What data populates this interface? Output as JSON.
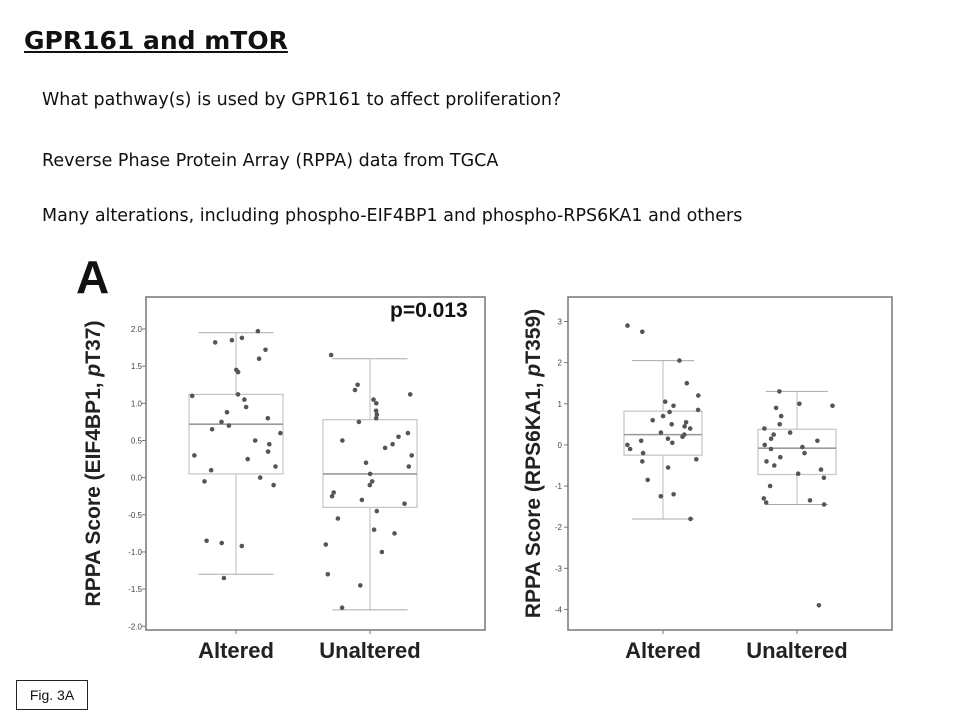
{
  "slide": {
    "title": "GPR161 and mTOR",
    "bullets": [
      "What pathway(s) is used by GPR161 to affect proliferation?",
      "Reverse Phase Protein Array (RPPA) data from TGCA",
      "Many alterations, including phospho-EIF4BP1 and phospho-RPS6KA1 and others"
    ],
    "panel_letter": "A",
    "figure_label": "Fig. 3A"
  },
  "chart_data": [
    {
      "type": "scatter",
      "subtype": "box-and-strip",
      "title": "",
      "annotation": "p=0.013",
      "ylabel_prefix": "RPPA Score (EIF4BP1, ",
      "ylabel_italic": "p",
      "ylabel_suffix": "T37)",
      "categories": [
        "Altered",
        "Unaltered"
      ],
      "ylim": [
        -2.05,
        2.35
      ],
      "yticks": [
        "2.0",
        "1.5",
        "1.0",
        "0.5",
        "0.0",
        "-0.5",
        "-1.0",
        "-1.5",
        "-2.0"
      ],
      "ytick_values": [
        2.0,
        1.5,
        1.0,
        0.5,
        0.0,
        -0.5,
        -1.0,
        -1.5,
        -2.0
      ],
      "grid": false,
      "boxes": [
        {
          "category": "Altered",
          "whisker_low": -1.3,
          "q1": 0.05,
          "median": 0.72,
          "q3": 1.12,
          "whisker_high": 1.95
        },
        {
          "category": "Unaltered",
          "whisker_low": -1.78,
          "q1": -0.4,
          "median": 0.05,
          "q3": 0.78,
          "whisker_high": 1.6
        }
      ],
      "points": [
        {
          "category": "Altered",
          "y": [
            1.97,
            1.88,
            1.85,
            1.82,
            1.72,
            1.6,
            1.45,
            1.42,
            1.12,
            1.1,
            1.05,
            0.95,
            0.88,
            0.8,
            0.75,
            0.7,
            0.65,
            0.6,
            0.5,
            0.45,
            0.35,
            0.3,
            0.25,
            0.15,
            0.1,
            0.0,
            -0.05,
            -0.1,
            -0.85,
            -0.88,
            -0.92,
            -1.35
          ]
        },
        {
          "category": "Unaltered",
          "y": [
            1.65,
            1.25,
            1.18,
            1.12,
            1.05,
            1.0,
            0.9,
            0.85,
            0.8,
            0.75,
            0.6,
            0.55,
            0.5,
            0.45,
            0.4,
            0.3,
            0.2,
            0.15,
            0.05,
            -0.05,
            -0.1,
            -0.2,
            -0.25,
            -0.3,
            -0.35,
            -0.45,
            -0.55,
            -0.7,
            -0.75,
            -0.9,
            -1.0,
            -1.3,
            -1.45,
            -1.75
          ]
        }
      ]
    },
    {
      "type": "scatter",
      "subtype": "box-and-strip",
      "title": "",
      "ylabel_prefix": "RPPA Score (RPS6KA1, ",
      "ylabel_italic": "p",
      "ylabel_suffix": "T359)",
      "categories": [
        "Altered",
        "Unaltered"
      ],
      "ylim": [
        -4.5,
        3.45
      ],
      "yticks": [
        "3",
        "2",
        "1",
        "0",
        "-1",
        "-2",
        "-3",
        "-4"
      ],
      "ytick_values": [
        3,
        2,
        1,
        0,
        -1,
        -2,
        -3,
        -4
      ],
      "grid": false,
      "boxes": [
        {
          "category": "Altered",
          "whisker_low": -1.8,
          "q1": -0.25,
          "median": 0.25,
          "q3": 0.82,
          "whisker_high": 2.05
        },
        {
          "category": "Unaltered",
          "whisker_low": -1.45,
          "q1": -0.72,
          "median": -0.08,
          "q3": 0.38,
          "whisker_high": 1.3
        }
      ],
      "points": [
        {
          "category": "Altered",
          "y": [
            2.9,
            2.75,
            2.05,
            1.5,
            1.2,
            1.05,
            0.95,
            0.85,
            0.8,
            0.7,
            0.6,
            0.55,
            0.5,
            0.45,
            0.4,
            0.3,
            0.25,
            0.2,
            0.15,
            0.1,
            0.05,
            0.0,
            -0.1,
            -0.2,
            -0.35,
            -0.4,
            -0.55,
            -0.85,
            -1.2,
            -1.25,
            -1.8
          ]
        },
        {
          "category": "Unaltered",
          "y": [
            1.3,
            1.0,
            0.95,
            0.9,
            0.7,
            0.5,
            0.4,
            0.3,
            0.25,
            0.15,
            0.1,
            0.0,
            -0.05,
            -0.1,
            -0.2,
            -0.3,
            -0.4,
            -0.5,
            -0.6,
            -0.7,
            -0.8,
            -1.0,
            -1.3,
            -1.35,
            -1.4,
            -1.45,
            -3.9
          ]
        }
      ]
    }
  ]
}
